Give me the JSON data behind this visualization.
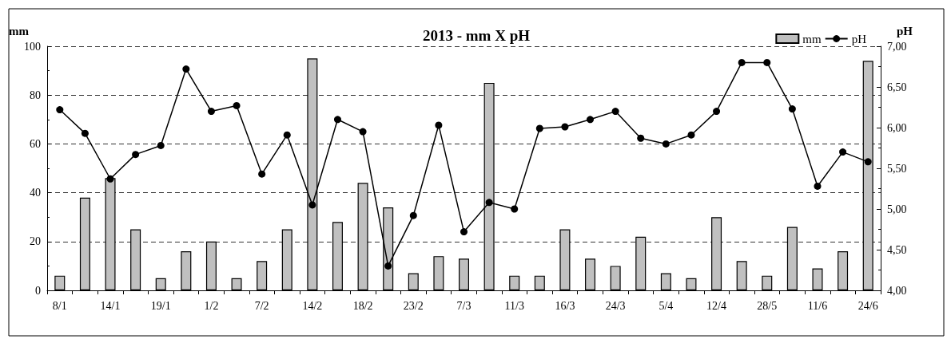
{
  "chart_data": {
    "type": "bar",
    "title": "2013 - mm X pH",
    "ylabel": "mm",
    "y2label": "pH",
    "categories": [
      "8/1",
      null,
      "14/1",
      null,
      "19/1",
      null,
      "1/2",
      null,
      "7/2",
      null,
      "14/2",
      null,
      "18/2",
      null,
      "23/2",
      null,
      "7/3",
      null,
      "11/3",
      null,
      "16/3",
      null,
      "24/3",
      null,
      "5/4",
      null,
      "12/4",
      null,
      "28/5",
      null,
      "11/6",
      null,
      "24/6"
    ],
    "series": [
      {
        "name": "mm",
        "color": "#c0c0c0",
        "values": [
          6,
          38,
          46,
          25,
          5,
          16,
          20,
          5,
          12,
          25,
          95,
          28,
          44,
          34,
          7,
          14,
          13,
          85,
          6,
          6,
          25,
          13,
          10,
          22,
          7,
          5,
          30,
          12,
          6,
          26,
          9,
          16,
          94
        ]
      },
      {
        "name": "pH",
        "type": "line",
        "axis": "y2",
        "color": "#000000",
        "values": [
          6.22,
          5.93,
          5.37,
          5.67,
          5.78,
          6.72,
          6.2,
          6.27,
          5.43,
          5.91,
          5.05,
          6.1,
          5.95,
          4.3,
          4.92,
          6.03,
          4.72,
          5.08,
          5.0,
          5.99,
          6.01,
          6.1,
          6.2,
          5.87,
          5.8,
          5.91,
          6.2,
          6.8,
          6.8,
          6.23,
          5.28,
          5.7,
          5.58
        ]
      }
    ],
    "ylim": [
      0,
      100
    ],
    "yticks": [
      0,
      20,
      40,
      60,
      80,
      100
    ],
    "y2lim": [
      4,
      7
    ],
    "y2ticks": [
      {
        "value": 4,
        "label": "4,00"
      },
      {
        "value": 4.5,
        "label": "4,50"
      },
      {
        "value": 5,
        "label": "5,00"
      },
      {
        "value": 5.5,
        "label": "5,50"
      },
      {
        "value": 6,
        "label": "6,00"
      },
      {
        "value": 6.5,
        "label": "6,50"
      },
      {
        "value": 7,
        "label": "7,00"
      }
    ],
    "grid": "y",
    "legend": "top right",
    "marker": "circle",
    "line_style": "solid"
  }
}
